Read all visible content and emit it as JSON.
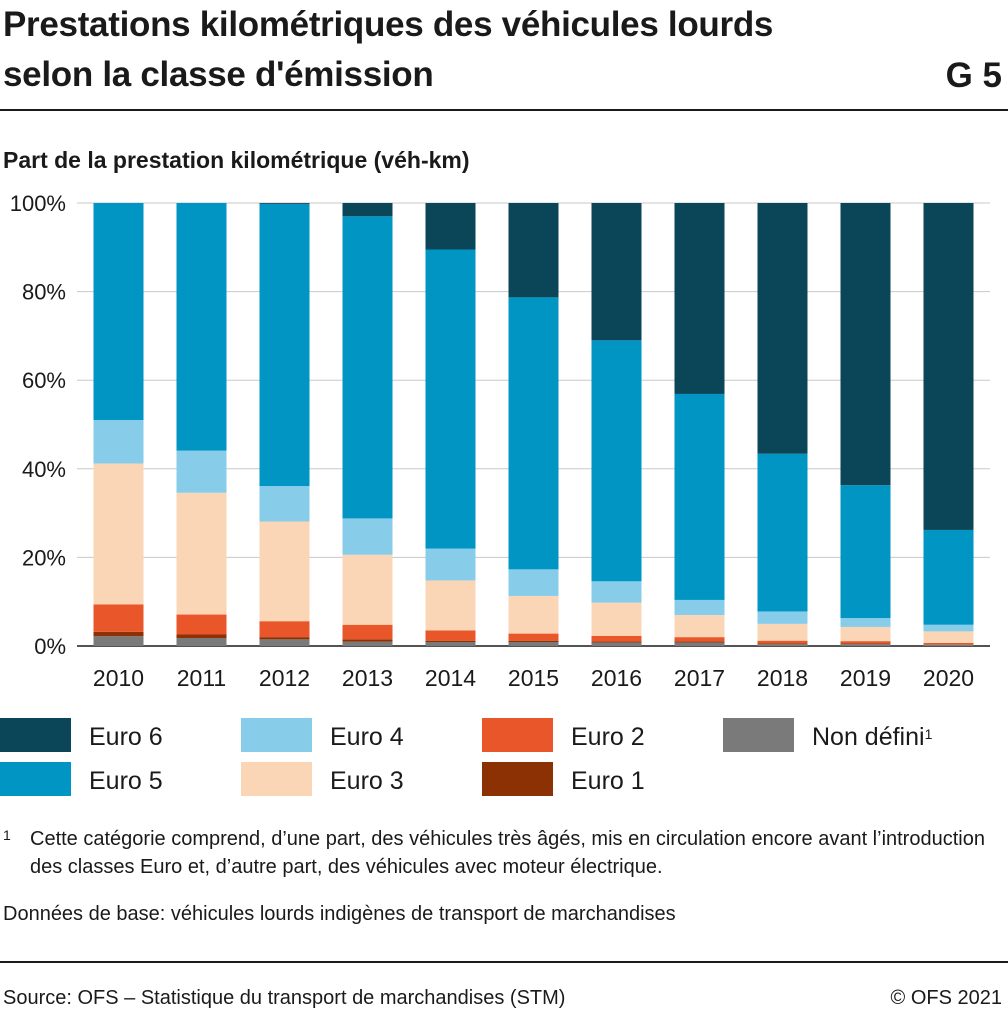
{
  "title": {
    "line1": "Prestations kilométriques des véhicules lourds",
    "line2": "selon la classe d'émission",
    "graph_number": "G 5"
  },
  "chart_data": {
    "type": "bar",
    "stacked": true,
    "subtitle": "Part de la prestation kilométrique (véh-km)",
    "categories": [
      "2010",
      "2011",
      "2012",
      "2013",
      "2014",
      "2015",
      "2016",
      "2017",
      "2018",
      "2019",
      "2020"
    ],
    "ylim": [
      0,
      100
    ],
    "yticks": [
      "0%",
      "20%",
      "40%",
      "60%",
      "80%",
      "100%"
    ],
    "grid": true,
    "series": [
      {
        "name": "Non défini",
        "color": "#7a7a7a",
        "values": [
          2.2,
          1.8,
          1.5,
          1.0,
          0.9,
          0.9,
          0.8,
          0.8,
          0.4,
          0.4,
          0.3
        ]
      },
      {
        "name": "Euro 1",
        "color": "#8b3104",
        "values": [
          1.0,
          0.8,
          0.5,
          0.5,
          0.3,
          0.3,
          0.2,
          0.2,
          0.2,
          0.2,
          0.1
        ]
      },
      {
        "name": "Euro 2",
        "color": "#e8562a",
        "values": [
          6.2,
          4.5,
          3.6,
          3.3,
          2.3,
          1.6,
          1.3,
          1.0,
          0.6,
          0.5,
          0.3
        ]
      },
      {
        "name": "Euro 3",
        "color": "#fad6b6",
        "values": [
          31.8,
          27.5,
          22.5,
          15.8,
          11.3,
          8.5,
          7.5,
          5.0,
          3.8,
          3.2,
          2.6
        ]
      },
      {
        "name": "Euro 4",
        "color": "#87cde9",
        "values": [
          9.8,
          9.5,
          8.0,
          8.2,
          7.2,
          6.0,
          4.8,
          3.4,
          2.8,
          2.0,
          1.5
        ]
      },
      {
        "name": "Euro 5",
        "color": "#0095c3",
        "values": [
          49.0,
          55.9,
          63.7,
          68.2,
          67.5,
          61.4,
          54.4,
          46.5,
          35.6,
          30.0,
          21.4
        ]
      },
      {
        "name": "Euro 6",
        "color": "#0b4558",
        "values": [
          0.0,
          0.0,
          0.2,
          3.0,
          10.5,
          21.3,
          31.0,
          43.1,
          56.6,
          63.7,
          73.8
        ]
      }
    ]
  },
  "legend": [
    {
      "label": "Euro 6",
      "color": "#0b4558",
      "sup": ""
    },
    {
      "label": "Euro 5",
      "color": "#0095c3",
      "sup": ""
    },
    {
      "label": "Euro 4",
      "color": "#87cde9",
      "sup": ""
    },
    {
      "label": "Euro 3",
      "color": "#fad6b6",
      "sup": ""
    },
    {
      "label": "Euro 2",
      "color": "#e8562a",
      "sup": ""
    },
    {
      "label": "Euro 1",
      "color": "#8b3104",
      "sup": ""
    },
    {
      "label": "Non défini",
      "color": "#7a7a7a",
      "sup": "1"
    }
  ],
  "footnote": {
    "mark": "1",
    "text": "Cette catégorie comprend, d’une part, des véhicules très âgés, mis en circulation encore avant l’introduction des classes Euro et, d’autre part, des véhicules avec moteur électrique."
  },
  "base_data": "Données de base: véhicules lourds indigènes de transport de marchandises",
  "source": "Source: OFS – Statistique du transport de marchandises (STM)",
  "copyright": "© OFS 2021"
}
